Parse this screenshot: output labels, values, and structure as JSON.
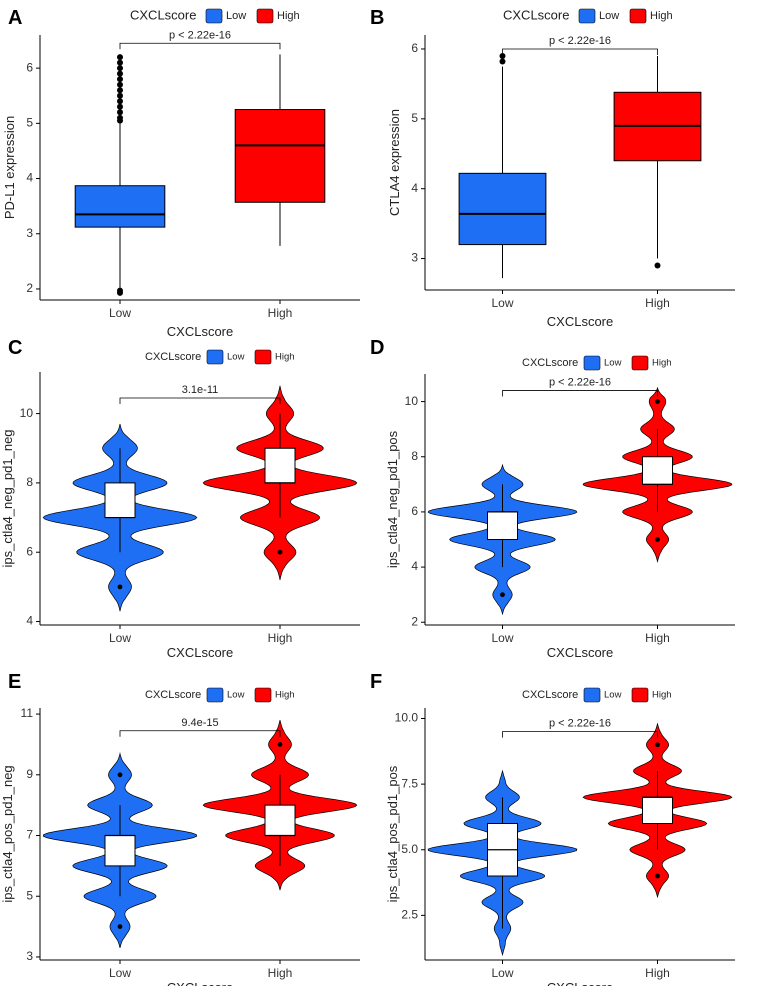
{
  "colors": {
    "low": "#1f6ff5",
    "high": "#ff0000",
    "violin_box": "#ffffff"
  },
  "chart_data": [
    {
      "id": "A",
      "letter": "A",
      "type": "box",
      "legend_title": "CXCLscore",
      "legend_labels": [
        "Low",
        "High"
      ],
      "categories": [
        "Low",
        "High"
      ],
      "xlabel": "CXCLscore",
      "ylabel": "PD-L1 expression",
      "ylim": [
        1.8,
        6.6
      ],
      "yticks": [
        2,
        3,
        4,
        5,
        6
      ],
      "significance": "p < 2.22e-16",
      "sig_y": 6.45,
      "groups": [
        {
          "name": "Low",
          "q1": 3.12,
          "median": 3.35,
          "q3": 3.87,
          "whisker_low": 2.0,
          "whisker_high": 5.0,
          "outliers": [
            1.93,
            1.97,
            5.05,
            5.1,
            5.2,
            5.3,
            5.4,
            5.5,
            5.6,
            5.7,
            5.8,
            5.9,
            6.0,
            6.1,
            6.2
          ]
        },
        {
          "name": "High",
          "q1": 3.57,
          "median": 4.6,
          "q3": 5.25,
          "whisker_low": 2.78,
          "whisker_high": 6.25,
          "outliers": []
        }
      ]
    },
    {
      "id": "B",
      "letter": "B",
      "type": "box",
      "legend_title": "CXCLscore",
      "legend_labels": [
        "Low",
        "High"
      ],
      "categories": [
        "Low",
        "High"
      ],
      "xlabel": "CXCLscore",
      "ylabel": "CTLA4 expression",
      "ylim": [
        2.55,
        6.2
      ],
      "yticks": [
        3,
        4,
        5,
        6
      ],
      "significance": "p < 2.22e-16",
      "sig_y": 6.0,
      "groups": [
        {
          "name": "Low",
          "q1": 3.2,
          "median": 3.64,
          "q3": 4.22,
          "whisker_low": 2.72,
          "whisker_high": 5.75,
          "outliers": [
            5.82,
            5.9
          ]
        },
        {
          "name": "High",
          "q1": 4.4,
          "median": 4.9,
          "q3": 5.38,
          "whisker_low": 3.0,
          "whisker_high": 5.9,
          "outliers": [
            2.9
          ]
        }
      ]
    },
    {
      "id": "C",
      "letter": "C",
      "type": "violin",
      "legend_title": "CXCLscore",
      "legend_labels": [
        "Low",
        "High"
      ],
      "categories": [
        "Low",
        "High"
      ],
      "xlabel": "CXCLscore",
      "ylabel": "ips_ctla4_neg_pd1_neg",
      "ylim": [
        3.9,
        11.2
      ],
      "yticks": [
        4,
        6,
        8,
        10
      ],
      "significance": "3.1e-11",
      "sig_y": 10.45,
      "groups": [
        {
          "name": "Low",
          "ymin": 4.3,
          "ymax": 9.7,
          "density_peaks": [
            [
              5.0,
              0.12
            ],
            [
              6.0,
              0.55
            ],
            [
              7.0,
              1.0
            ],
            [
              8.0,
              0.6
            ],
            [
              9.0,
              0.2
            ]
          ],
          "q1": 7.0,
          "median": 7.0,
          "q3": 8.0,
          "whisker_low": 6.0,
          "whisker_high": 9.0,
          "outliers": [
            5.0
          ]
        },
        {
          "name": "High",
          "ymin": 5.2,
          "ymax": 10.8,
          "density_peaks": [
            [
              6.0,
              0.18
            ],
            [
              7.0,
              0.5
            ],
            [
              8.0,
              1.0
            ],
            [
              9.0,
              0.55
            ],
            [
              10.0,
              0.15
            ]
          ],
          "q1": 8.0,
          "median": 8.0,
          "q3": 9.0,
          "whisker_low": 7.0,
          "whisker_high": 10.0,
          "outliers": [
            6.0
          ]
        }
      ]
    },
    {
      "id": "D",
      "letter": "D",
      "type": "violin",
      "legend_title": "CXCLscore",
      "legend_labels": [
        "Low",
        "High"
      ],
      "categories": [
        "Low",
        "High"
      ],
      "xlabel": "CXCLscore",
      "ylabel": "ips_ctla4_neg_pd1_pos",
      "ylim": [
        1.9,
        11.0
      ],
      "yticks": [
        2,
        4,
        6,
        8,
        10
      ],
      "significance": "p < 2.22e-16",
      "sig_y": 10.4,
      "groups": [
        {
          "name": "Low",
          "ymin": 2.3,
          "ymax": 7.7,
          "density_peaks": [
            [
              3.0,
              0.1
            ],
            [
              4.0,
              0.35
            ],
            [
              5.0,
              0.7
            ],
            [
              6.0,
              1.0
            ],
            [
              7.0,
              0.25
            ]
          ],
          "q1": 5.0,
          "median": 6.0,
          "q3": 6.0,
          "whisker_low": 4.0,
          "whisker_high": 7.0,
          "outliers": [
            3.0
          ]
        },
        {
          "name": "High",
          "ymin": 4.2,
          "ymax": 10.5,
          "density_peaks": [
            [
              5.0,
              0.12
            ],
            [
              6.0,
              0.45
            ],
            [
              7.0,
              1.0
            ],
            [
              8.0,
              0.45
            ],
            [
              9.0,
              0.2
            ],
            [
              10.0,
              0.08
            ]
          ],
          "q1": 7.0,
          "median": 7.0,
          "q3": 8.0,
          "whisker_low": 6.0,
          "whisker_high": 9.0,
          "outliers": [
            5.0,
            10.0
          ]
        }
      ]
    },
    {
      "id": "E",
      "letter": "E",
      "type": "violin",
      "legend_title": "CXCLscore",
      "legend_labels": [
        "Low",
        "High"
      ],
      "categories": [
        "Low",
        "High"
      ],
      "xlabel": "CXCLscore",
      "ylabel": "ips_ctla4_pos_pd1_neg",
      "ylim": [
        2.9,
        11.2
      ],
      "yticks": [
        3,
        5,
        7,
        9,
        11
      ],
      "significance": "9.4e-15",
      "sig_y": 10.45,
      "groups": [
        {
          "name": "Low",
          "ymin": 3.3,
          "ymax": 9.7,
          "density_peaks": [
            [
              4.0,
              0.1
            ],
            [
              5.0,
              0.45
            ],
            [
              6.0,
              0.6
            ],
            [
              7.0,
              1.0
            ],
            [
              8.0,
              0.4
            ],
            [
              9.0,
              0.12
            ]
          ],
          "q1": 6.0,
          "median": 7.0,
          "q3": 7.0,
          "whisker_low": 5.0,
          "whisker_high": 8.0,
          "outliers": [
            4.0,
            9.0
          ]
        },
        {
          "name": "High",
          "ymin": 5.2,
          "ymax": 10.8,
          "density_peaks": [
            [
              6.0,
              0.3
            ],
            [
              7.0,
              0.7
            ],
            [
              8.0,
              1.0
            ],
            [
              9.0,
              0.35
            ],
            [
              10.0,
              0.12
            ]
          ],
          "q1": 7.0,
          "median": 7.0,
          "q3": 8.0,
          "whisker_low": 6.0,
          "whisker_high": 9.0,
          "outliers": [
            10.0
          ]
        }
      ]
    },
    {
      "id": "F",
      "letter": "F",
      "type": "violin",
      "legend_title": "CXCLscore",
      "legend_labels": [
        "Low",
        "High"
      ],
      "categories": [
        "Low",
        "High"
      ],
      "xlabel": "CXCLscore",
      "ylabel": "ips_ctla4_pos_pd1_pos",
      "ylim": [
        0.8,
        10.4
      ],
      "yticks": [
        2.5,
        5.0,
        7.5,
        10.0
      ],
      "ytick_labels": [
        "2.5",
        "5.0",
        "7.5",
        "10.0"
      ],
      "significance": "p < 2.22e-16",
      "sig_y": 9.5,
      "groups": [
        {
          "name": "Low",
          "ymin": 1.0,
          "ymax": 8.0,
          "density_peaks": [
            [
              2.0,
              0.08
            ],
            [
              3.0,
              0.25
            ],
            [
              4.0,
              0.55
            ],
            [
              5.0,
              1.0
            ],
            [
              6.0,
              0.5
            ],
            [
              7.0,
              0.2
            ]
          ],
          "q1": 4.0,
          "median": 5.0,
          "q3": 6.0,
          "whisker_low": 2.0,
          "whisker_high": 7.0,
          "outliers": []
        },
        {
          "name": "High",
          "ymin": 3.2,
          "ymax": 9.8,
          "density_peaks": [
            [
              4.0,
              0.12
            ],
            [
              5.0,
              0.35
            ],
            [
              6.0,
              0.65
            ],
            [
              7.0,
              1.0
            ],
            [
              8.0,
              0.3
            ],
            [
              9.0,
              0.12
            ]
          ],
          "q1": 6.0,
          "median": 7.0,
          "q3": 7.0,
          "whisker_low": 5.0,
          "whisker_high": 8.0,
          "outliers": [
            4.0,
            9.0
          ]
        }
      ]
    }
  ]
}
